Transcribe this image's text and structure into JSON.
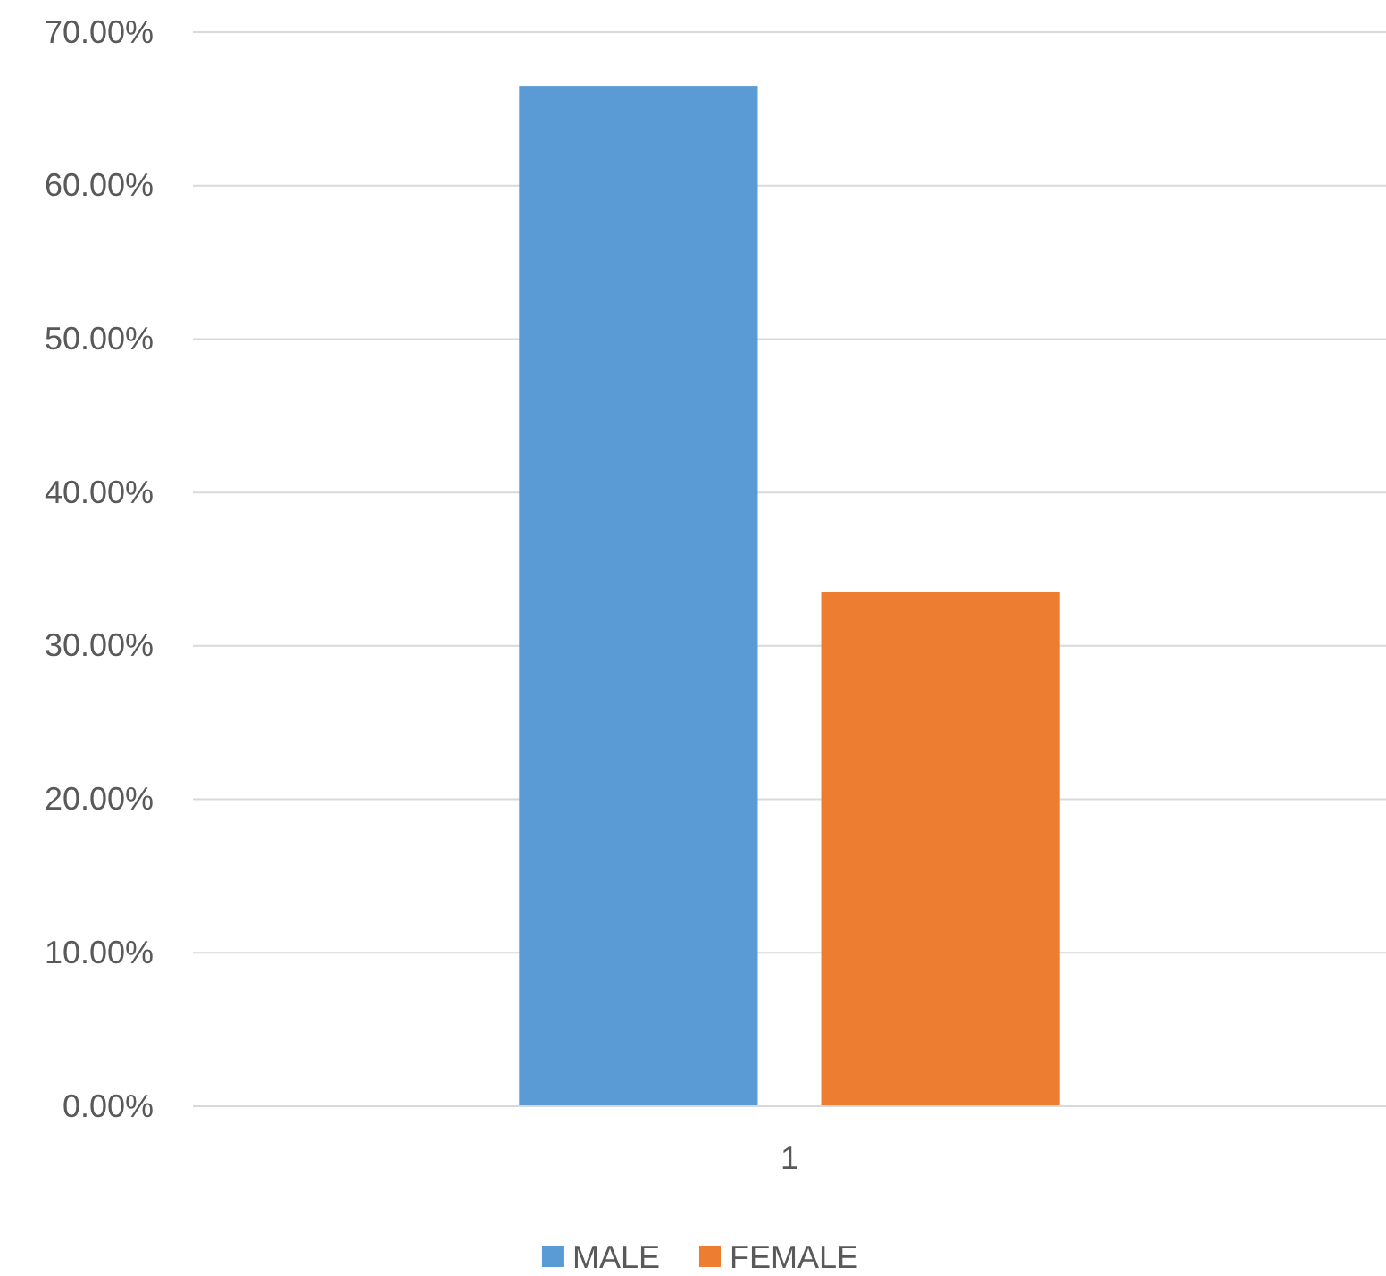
{
  "chart_data": {
    "type": "bar",
    "categories": [
      "1"
    ],
    "series": [
      {
        "name": "MALE",
        "color": "#5b9bd5",
        "values": [
          66.5
        ]
      },
      {
        "name": "FEMALE",
        "color": "#ed7d31",
        "values": [
          33.5
        ]
      }
    ],
    "ylim": [
      0,
      70
    ],
    "yticks": [
      {
        "value": 0,
        "label": "0.00%"
      },
      {
        "value": 10,
        "label": "10.00%"
      },
      {
        "value": 20,
        "label": "20.00%"
      },
      {
        "value": 30,
        "label": "30.00%"
      },
      {
        "value": 40,
        "label": "40.00%"
      },
      {
        "value": 50,
        "label": "50.00%"
      },
      {
        "value": 60,
        "label": "60.00%"
      },
      {
        "value": 70,
        "label": "70.00%"
      }
    ],
    "grid": "y",
    "legend": "bottom"
  }
}
